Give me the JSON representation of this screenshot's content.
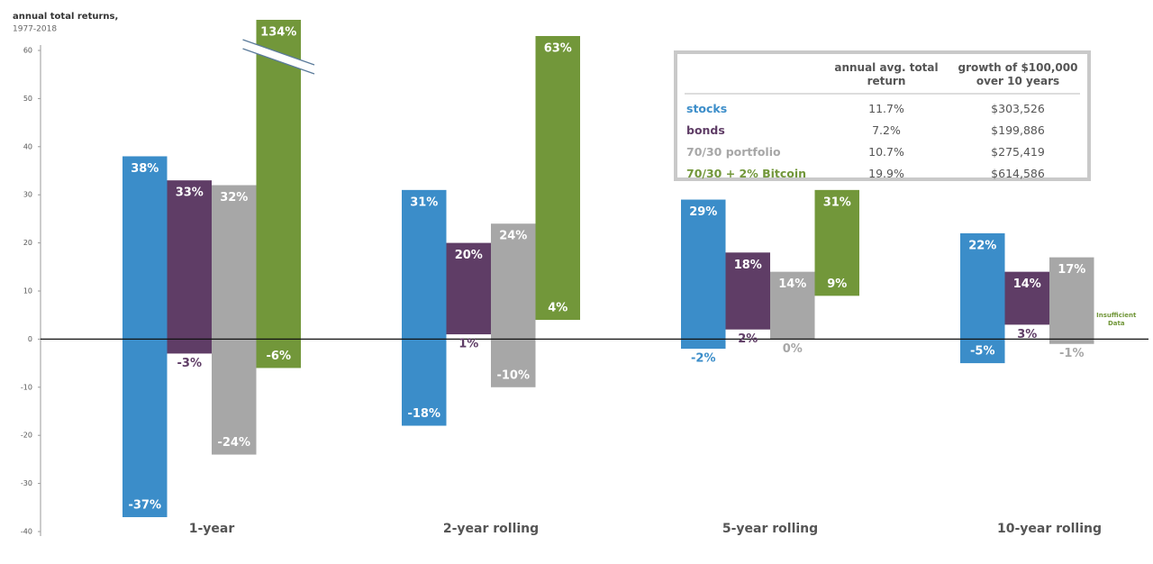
{
  "chart_data": {
    "type": "floating_bar",
    "title": "annual total returns,",
    "subtitle": "1977-2018",
    "categories": [
      "1-year",
      "2-year rolling",
      "5-year rolling",
      "10-year rolling"
    ],
    "ylim": [
      -40,
      60
    ],
    "yticks": [
      -40,
      -30,
      -20,
      -10,
      0,
      10,
      20,
      30,
      40,
      50,
      60
    ],
    "series": [
      {
        "name": "stocks",
        "color": "#3b8dc9",
        "values": [
          [
            -37,
            38
          ],
          [
            -18,
            31
          ],
          [
            -2,
            29
          ],
          [
            -5,
            22
          ]
        ],
        "value_labels": [
          [
            "-37%",
            "38%"
          ],
          [
            "-18%",
            "31%"
          ],
          [
            "-2%",
            "29%"
          ],
          [
            "-5%",
            "22%"
          ]
        ]
      },
      {
        "name": "bonds",
        "color": "#5f3d66",
        "values": [
          [
            -3,
            33
          ],
          [
            1,
            20
          ],
          [
            2,
            18
          ],
          [
            3,
            14
          ]
        ],
        "value_labels": [
          [
            "-3%",
            "33%"
          ],
          [
            "1%",
            "20%"
          ],
          [
            "2%",
            "18%"
          ],
          [
            "3%",
            "14%"
          ]
        ]
      },
      {
        "name": "70/30 portfolio",
        "color": "#a7a7a7",
        "values": [
          [
            -24,
            32
          ],
          [
            -10,
            24
          ],
          [
            0,
            14
          ],
          [
            -1,
            17
          ]
        ],
        "value_labels": [
          [
            "-24%",
            "32%"
          ],
          [
            "-10%",
            "24%"
          ],
          [
            "0%",
            "14%"
          ],
          [
            "-1%",
            "17%"
          ]
        ]
      },
      {
        "name": "70/30 + 2% Bitcoin",
        "color": "#72973a",
        "values": [
          [
            -6,
            134
          ],
          [
            4,
            63
          ],
          [
            9,
            31
          ],
          null
        ],
        "value_labels": [
          [
            "-6%",
            "134%"
          ],
          [
            "4%",
            "63%"
          ],
          [
            "9%",
            "31%"
          ],
          null
        ]
      }
    ],
    "annotation": "Insufficient Data",
    "table": {
      "columns": [
        "annual avg. total return",
        "growth of $100,000 over 10 years"
      ],
      "rows": [
        [
          "11.7%",
          "$303,526"
        ],
        [
          "7.2%",
          "$199,886"
        ],
        [
          "10.7%",
          "$275,419"
        ],
        [
          "19.9%",
          "$614,586"
        ]
      ]
    }
  }
}
